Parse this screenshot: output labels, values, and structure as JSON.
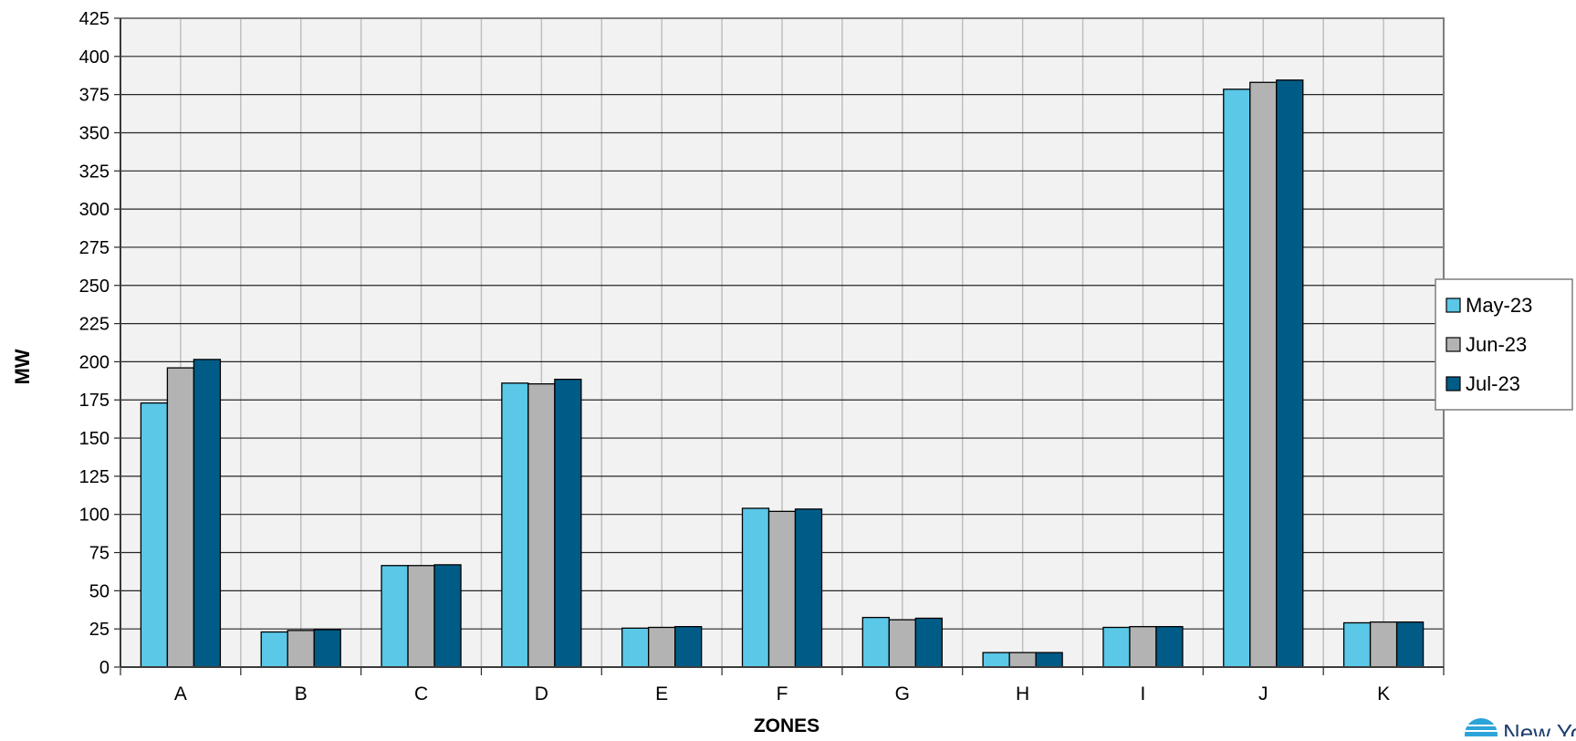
{
  "chart_data": {
    "type": "bar",
    "title": "",
    "xlabel": "ZONES",
    "ylabel": "MW",
    "ylim": [
      0,
      425
    ],
    "ytick_step": 25,
    "grid": true,
    "legend_position": "right",
    "categories": [
      "A",
      "B",
      "C",
      "D",
      "E",
      "F",
      "G",
      "H",
      "I",
      "J",
      "K"
    ],
    "series": [
      {
        "name": "May-23",
        "color": "#5BC8E8",
        "values": [
          173,
          23,
          66.5,
          186,
          25.5,
          104,
          32.5,
          9.5,
          26,
          378.5,
          29
        ]
      },
      {
        "name": "Jun-23",
        "color": "#B3B3B3",
        "values": [
          196,
          24,
          66.5,
          185.5,
          26,
          102,
          31,
          9.5,
          26.5,
          383,
          29.5
        ]
      },
      {
        "name": "Jul-23",
        "color": "#005C87",
        "values": [
          201.5,
          24.5,
          67,
          188.5,
          26.5,
          103.5,
          32,
          9.5,
          26.5,
          384.5,
          29.5
        ]
      }
    ]
  },
  "logo": {
    "text": "New York ISO",
    "icon": "nyiso-logo-icon"
  }
}
